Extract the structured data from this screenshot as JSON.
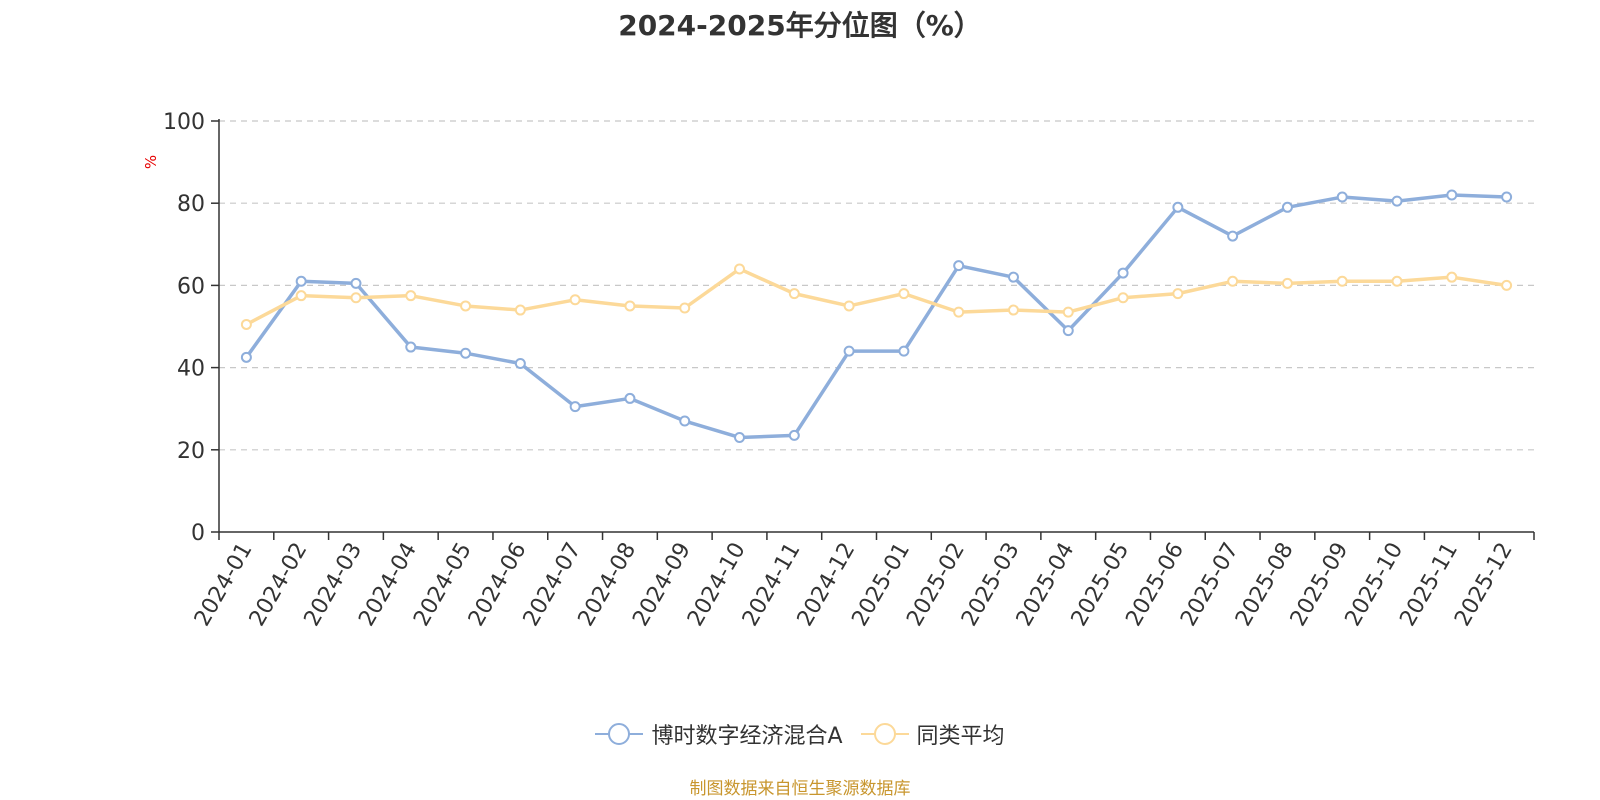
{
  "chart_data": {
    "type": "line",
    "title": "2024-2025年分位图（%）",
    "ylabel": "%",
    "xlabel": "",
    "ylim": [
      0,
      100
    ],
    "yticks": [
      0,
      20,
      40,
      60,
      80,
      100
    ],
    "grid": true,
    "legend_position": "bottom",
    "categories": [
      "2024-01",
      "2024-02",
      "2024-03",
      "2024-04",
      "2024-05",
      "2024-06",
      "2024-07",
      "2024-08",
      "2024-09",
      "2024-10",
      "2024-11",
      "2024-12",
      "2025-01",
      "2025-02",
      "2025-03",
      "2025-04",
      "2025-05",
      "2025-06",
      "2025-07",
      "2025-08",
      "2025-09",
      "2025-10",
      "2025-11",
      "2025-12"
    ],
    "series": [
      {
        "name": "博时数字经济混合A",
        "color": "#8eaedb",
        "values": [
          42.5,
          61,
          60.5,
          45,
          43.5,
          41,
          30.5,
          32.5,
          27,
          23,
          23.5,
          44,
          44,
          64.8,
          62,
          49,
          63,
          79,
          72,
          79,
          81.5,
          80.5,
          82,
          81.5
        ]
      },
      {
        "name": "同类平均",
        "color": "#fcd999",
        "values": [
          50.5,
          57.5,
          57,
          57.5,
          55,
          54,
          56.5,
          55,
          54.5,
          64,
          58,
          55,
          58,
          53.5,
          54,
          53.5,
          57,
          58,
          61,
          60.5,
          61,
          61,
          62,
          60
        ]
      }
    ]
  },
  "source_note": "制图数据来自恒生聚源数据库",
  "source_color": "#c8962e",
  "axis_color": "#333333",
  "grid_color": "#c8c8c8",
  "ylabel_color": "#e60000"
}
